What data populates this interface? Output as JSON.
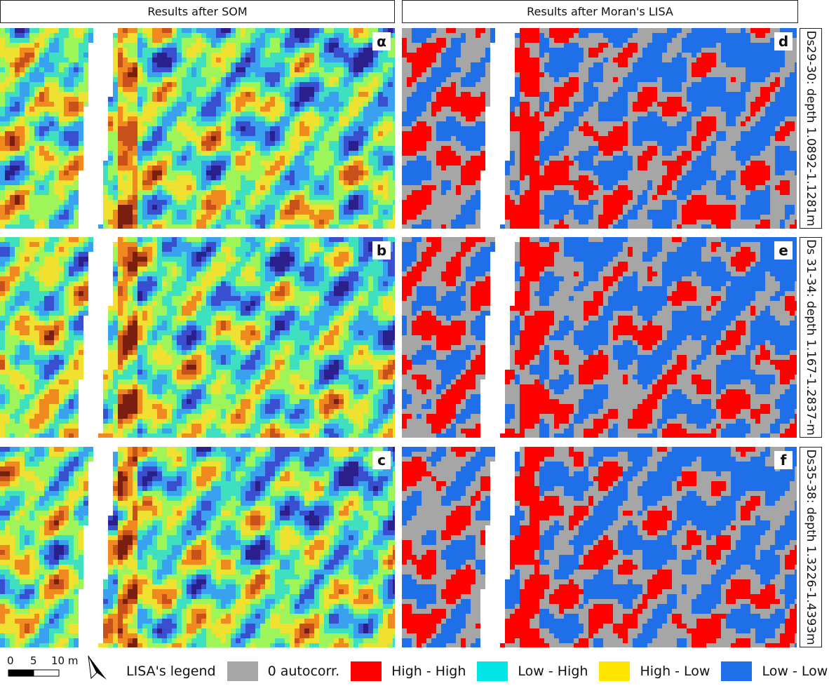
{
  "headers": {
    "left": "Results after SOM",
    "right": "Results after Moran's LISA"
  },
  "panels": [
    {
      "label": "α",
      "type": "som",
      "seed": 11
    },
    {
      "label": "b",
      "type": "som",
      "seed": 23
    },
    {
      "label": "c",
      "type": "som",
      "seed": 37
    },
    {
      "label": "d",
      "type": "lisa",
      "seed": 11
    },
    {
      "label": "e",
      "type": "lisa",
      "seed": 23
    },
    {
      "label": "f",
      "type": "lisa",
      "seed": 37
    }
  ],
  "row_labels": [
    "Ds29-30: depth 1.0892-1.1281m",
    "Ds 31-34: depth 1.167-1.2837-m",
    "Ds35-38: depth 1.3226-1.4393m"
  ],
  "scale": {
    "ticks": [
      "0",
      "5",
      "10 m"
    ]
  },
  "legend": {
    "title": "LISA's legend",
    "items": [
      {
        "label": "0 autocorr.",
        "color": "#a6a6a6"
      },
      {
        "label": "High - High",
        "color": "#ff0000"
      },
      {
        "label": "Low - High",
        "color": "#00e5e5"
      },
      {
        "label": "High - Low",
        "color": "#ffe600"
      },
      {
        "label": "Low - Low",
        "color": "#1f6fe8"
      }
    ]
  },
  "colors": {
    "som_ramp": [
      "#2b1f8c",
      "#3a4fd0",
      "#3aa0f0",
      "#3fe0c0",
      "#9ef55a",
      "#f0e030",
      "#f08a20",
      "#c8501a",
      "#7a1f10"
    ],
    "lisa_high_high": "#ff0000",
    "lisa_low_low": "#1f6fe8",
    "lisa_not_significant": "#a6a6a6"
  }
}
